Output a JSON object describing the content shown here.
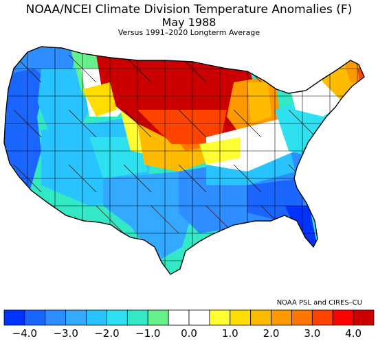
{
  "title": "NOAA/NCEI Climate Division Temperature Anomalies (F)",
  "subtitle": "May 1988",
  "subsubtitle": "Versus 1991–2020 Longterm Average",
  "credit": "NOAA PSL and CIRES–CU",
  "colorbar": {
    "colors": [
      "#0033ff",
      "#1a66ff",
      "#2e8dff",
      "#33aaff",
      "#29c4ff",
      "#2ee0f0",
      "#33e8c4",
      "#66f08c",
      "#ffffff",
      "#ffffff",
      "#ffff33",
      "#ffdd00",
      "#ffbb00",
      "#ff9900",
      "#ff7700",
      "#ff4400",
      "#ff0000",
      "#cc0000"
    ],
    "tick_labels": [
      "−4.0",
      "−3.0",
      "−2.0",
      "−1.0",
      "0.0",
      "1.0",
      "2.0",
      "3.0",
      "4.0"
    ],
    "ticks": [
      -4,
      -3,
      -2,
      -1,
      0,
      1,
      2,
      3,
      4
    ],
    "range": [
      -4.5,
      4.5
    ]
  },
  "regions": [
    {
      "name": "pacific-northwest",
      "anomaly": -3.0
    },
    {
      "name": "california-coast",
      "anomaly": -3.5
    },
    {
      "name": "great-basin",
      "anomaly": -2.0
    },
    {
      "name": "northern-rockies",
      "anomaly": -1.0
    },
    {
      "name": "southwest",
      "anomaly": -2.0
    },
    {
      "name": "texas",
      "anomaly": -2.5
    },
    {
      "name": "gulf-coast-southeast",
      "anomaly": -3.0
    },
    {
      "name": "florida",
      "anomaly": -3.5
    },
    {
      "name": "northern-great-plains",
      "anomaly": 4.0
    },
    {
      "name": "upper-midwest",
      "anomaly": 4.0
    },
    {
      "name": "central-plains",
      "anomaly": 2.5
    },
    {
      "name": "ohio-valley",
      "anomaly": 0.5
    },
    {
      "name": "great-lakes",
      "anomaly": 2.0
    },
    {
      "name": "mid-atlantic",
      "anomaly": -1.5
    },
    {
      "name": "new-england",
      "anomaly": 1.5
    },
    {
      "name": "northern-maine",
      "anomaly": 3.0
    }
  ]
}
